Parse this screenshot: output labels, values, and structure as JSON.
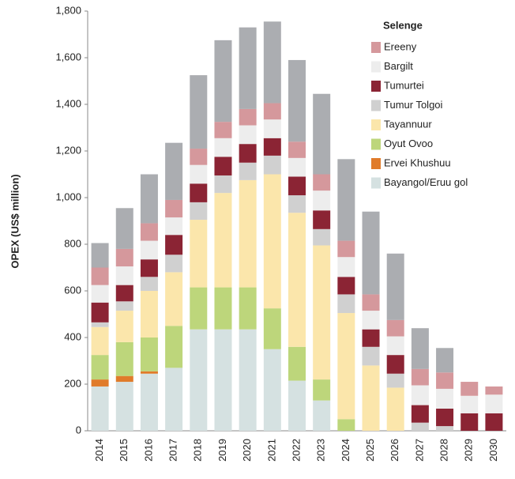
{
  "chart_data": {
    "type": "stacked_bar",
    "y_label": "OPEX (US$ million)",
    "categories": [
      "2014",
      "2015",
      "2016",
      "2017",
      "2018",
      "2019",
      "2020",
      "2021",
      "2022",
      "2023",
      "2024",
      "2025",
      "2026",
      "2027",
      "2028",
      "2029",
      "2030"
    ],
    "ylim": [
      0,
      1800
    ],
    "yticks": [
      0,
      200,
      400,
      600,
      800,
      {
        "value": 1000,
        "label": "1,000"
      },
      {
        "value": 1200,
        "label": "1,200"
      },
      {
        "value": 1400,
        "label": "1,400"
      },
      {
        "value": 1600,
        "label": "1,600"
      },
      {
        "value": 1800,
        "label": "1,800"
      }
    ],
    "legend_title": "Selenge",
    "series": [
      {
        "name": "Bayangol/Eruu gol",
        "color": "#d5e1e1",
        "values": [
          190,
          210,
          245,
          270,
          435,
          435,
          435,
          350,
          215,
          130,
          0,
          0,
          0,
          0,
          0,
          0,
          0
        ]
      },
      {
        "name": "Ervei Khushuu",
        "color": "#e07b2a",
        "values": [
          30,
          25,
          10,
          0,
          0,
          0,
          0,
          0,
          0,
          0,
          0,
          0,
          0,
          0,
          0,
          0,
          0
        ]
      },
      {
        "name": "Oyut Ovoo",
        "color": "#bdd67b",
        "values": [
          105,
          145,
          145,
          180,
          180,
          180,
          180,
          175,
          145,
          90,
          50,
          0,
          0,
          0,
          0,
          0,
          0
        ]
      },
      {
        "name": "Tayannuur",
        "color": "#fbe6ab",
        "values": [
          120,
          135,
          200,
          230,
          290,
          405,
          460,
          575,
          575,
          575,
          455,
          280,
          185,
          0,
          0,
          0,
          0
        ]
      },
      {
        "name": "Tumur Tolgoi",
        "color": "#d0d0d0",
        "values": [
          20,
          40,
          60,
          75,
          75,
          75,
          75,
          80,
          75,
          70,
          80,
          80,
          60,
          35,
          20,
          0,
          0
        ]
      },
      {
        "name": "Tumurtei",
        "color": "#8b2434",
        "values": [
          85,
          70,
          75,
          85,
          80,
          80,
          80,
          75,
          80,
          80,
          75,
          75,
          80,
          75,
          75,
          75,
          75
        ]
      },
      {
        "name": "Bargilt",
        "color": "#ededed",
        "values": [
          75,
          80,
          80,
          75,
          80,
          80,
          80,
          80,
          80,
          85,
          85,
          80,
          80,
          85,
          85,
          75,
          80
        ]
      },
      {
        "name": "Ereeny",
        "color": "#d5989c",
        "values": [
          75,
          75,
          75,
          75,
          70,
          70,
          70,
          70,
          70,
          70,
          70,
          70,
          70,
          70,
          70,
          60,
          35
        ]
      },
      {
        "name": "Selenge",
        "color": "#abadb1",
        "values": [
          105,
          175,
          210,
          245,
          315,
          350,
          350,
          350,
          350,
          345,
          350,
          355,
          285,
          175,
          105,
          0,
          0
        ]
      }
    ]
  }
}
